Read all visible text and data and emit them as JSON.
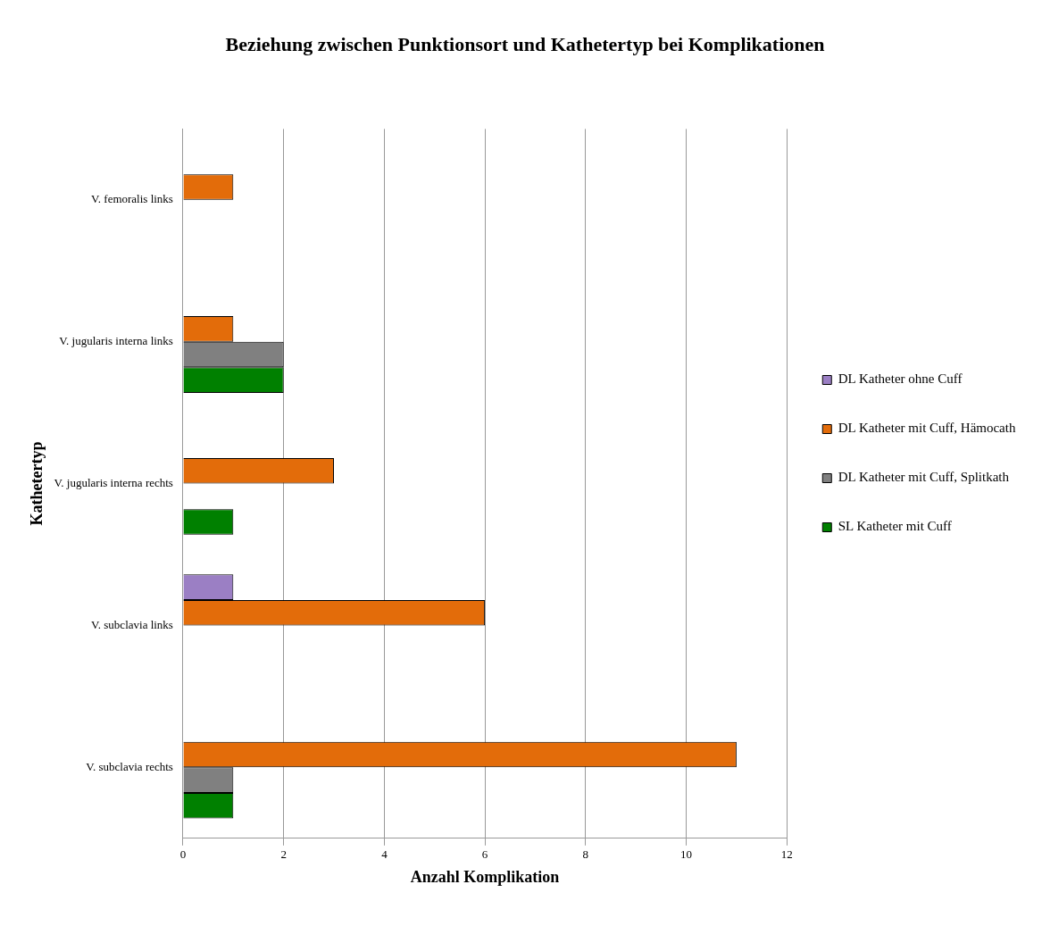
{
  "chart_data": {
    "type": "bar",
    "orientation": "horizontal",
    "title": "Beziehung zwischen Punktionsort und Kathetertyp bei Komplikationen",
    "xlabel": "Anzahl Komplikation",
    "ylabel": "Kathetertyp",
    "categories": [
      "V. femoralis links",
      "V. jugularis interna links",
      "V. jugularis interna rechts",
      "V. subclavia links",
      "V. subclavia rechts"
    ],
    "series": [
      {
        "name": "DL Katheter ohne Cuff",
        "color": "#9b7fc4",
        "values": [
          0,
          0,
          0,
          1,
          0
        ]
      },
      {
        "name": "DL Katheter mit Cuff, Hämocath",
        "color": "#e36c0a",
        "values": [
          1,
          1,
          3,
          6,
          11
        ]
      },
      {
        "name": "DL Katheter mit Cuff, Splitkath",
        "color": "#808080",
        "values": [
          0,
          2,
          0,
          0,
          1
        ]
      },
      {
        "name": "SL Katheter mit Cuff",
        "color": "#008000",
        "values": [
          0,
          2,
          1,
          0,
          1
        ]
      }
    ],
    "xlim": [
      0,
      12
    ],
    "xticks": [
      0,
      2,
      4,
      6,
      8,
      10,
      12
    ],
    "grid": "x",
    "legend": "right"
  }
}
